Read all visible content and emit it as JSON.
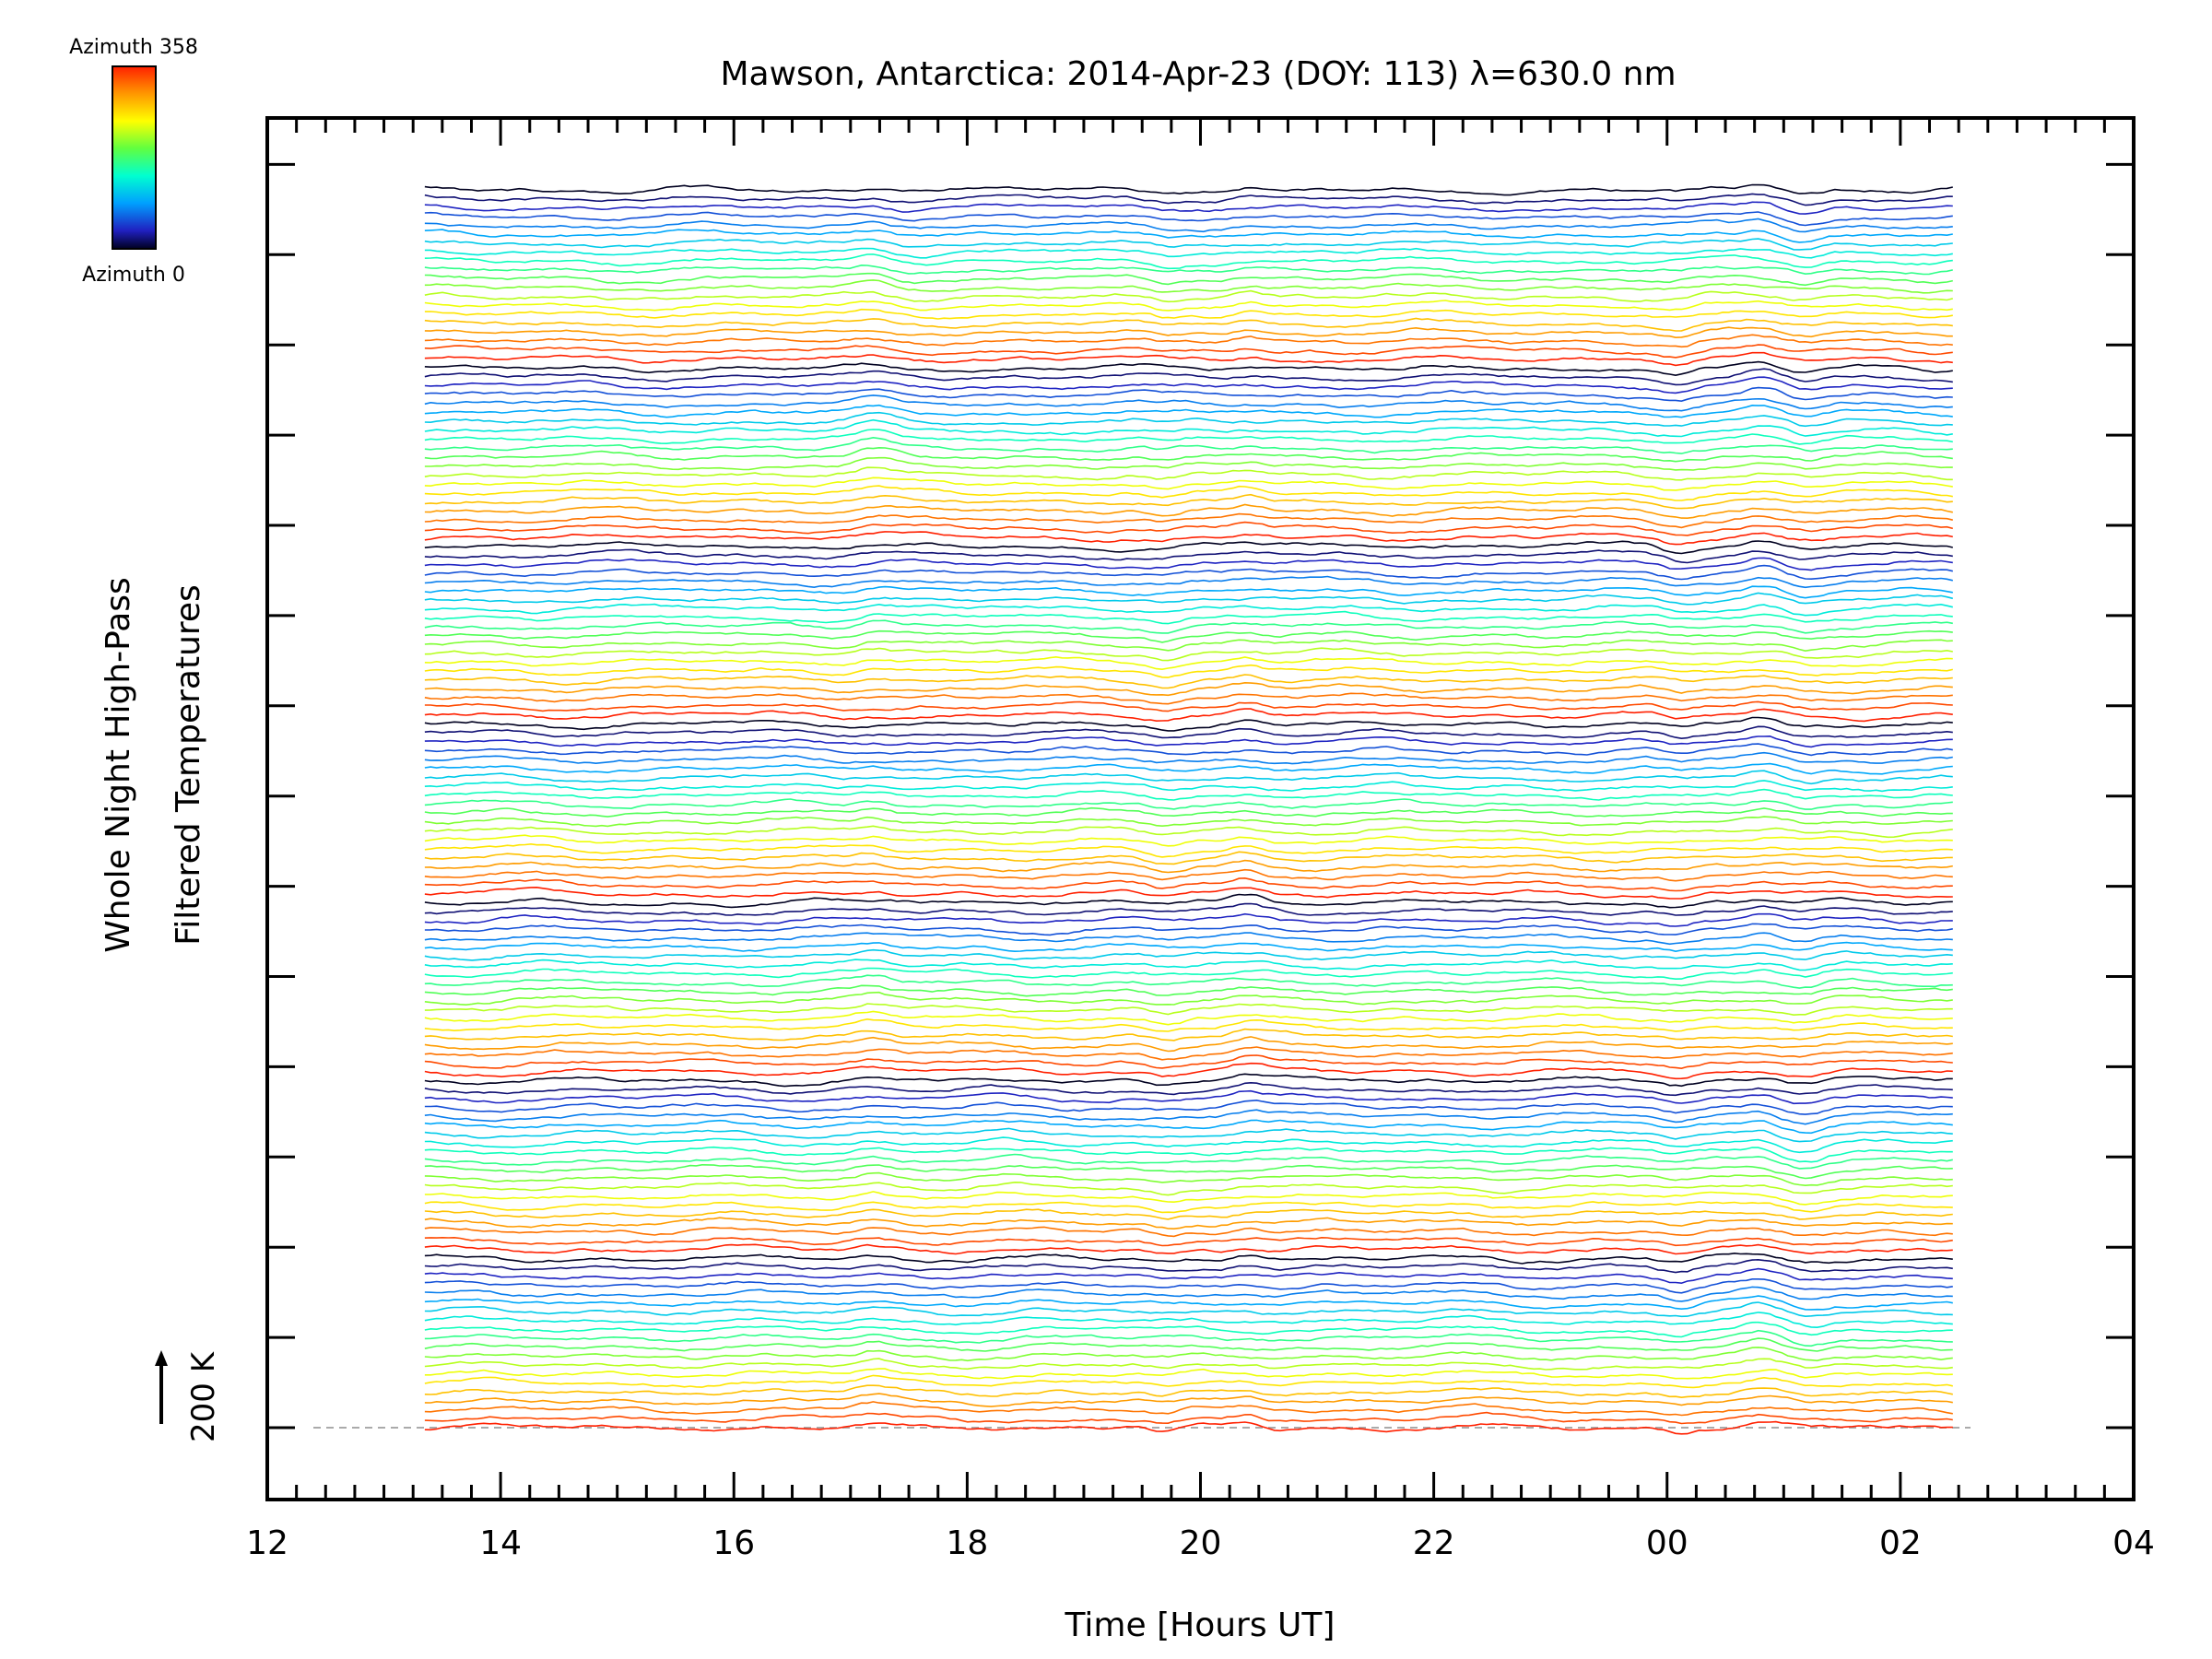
{
  "chart_data": {
    "type": "line",
    "title": "Mawson, Antarctica: 2014-Apr-23 (DOY: 113) λ=630.0 nm",
    "xlabel": "Time [Hours UT]",
    "ylabel_line1": "Whole Night High-Pass",
    "ylabel_line2": "Filtered Temperatures",
    "xlim": [
      12,
      28
    ],
    "x_tick_labels": [
      "12",
      "14",
      "16",
      "18",
      "20",
      "22",
      "00",
      "02",
      "04"
    ],
    "data_range_hours": [
      13.35,
      26.45
    ],
    "y_scale_label": "200 K",
    "baseline_dashed": true,
    "colorbar": {
      "top_label": "Azimuth 358",
      "bottom_label": "Azimuth 0",
      "colors": [
        "#ff2000",
        "#ff9000",
        "#ffff00",
        "#60ff40",
        "#00ffd0",
        "#00a0ff",
        "#2020c0",
        "#000020"
      ]
    },
    "series_count": 140,
    "azimuth_groups": 7,
    "series_per_group": 20,
    "features_hours": [
      17.2,
      19.7,
      20.4,
      24.1,
      24.8,
      25.2
    ]
  }
}
